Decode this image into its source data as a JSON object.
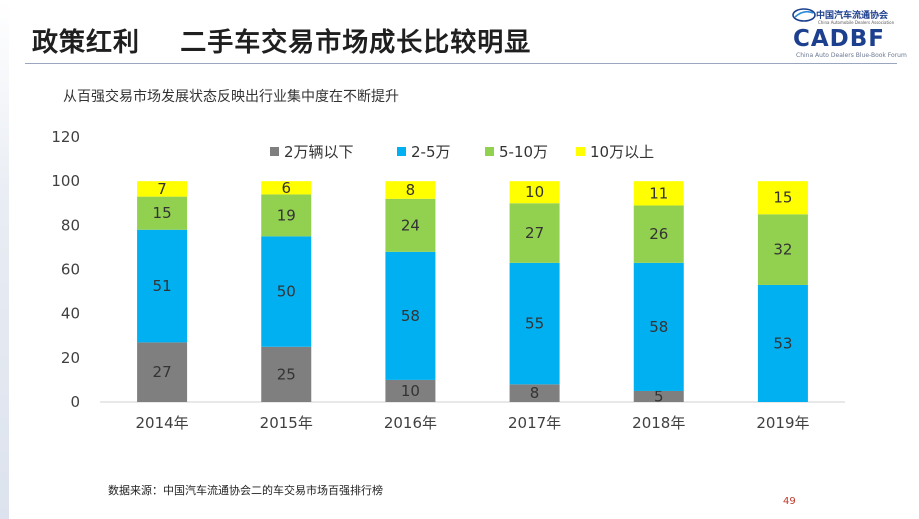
{
  "header": {
    "title": "政策红利    二手车交易市场成长比较明显",
    "subtitle": "从百强交易市场发展状态反映出行业集中度在不断提升"
  },
  "logo": {
    "org_cn": "中国汽车流通协会",
    "org_en": "China Automobile Dealers Association",
    "name": "CADBF",
    "forum": "China Auto Dealers Blue-Book Forum"
  },
  "footer": {
    "source": "数据来源：中国汽车流通协会二的车交易市场百强排行榜",
    "page_number": "49"
  },
  "chart_data": {
    "type": "bar",
    "stacked": true,
    "categories": [
      "2014年",
      "2015年",
      "2016年",
      "2017年",
      "2018年",
      "2019年"
    ],
    "series": [
      {
        "name": "2万辆以下",
        "color": "#7f7f7f",
        "values": [
          27,
          25,
          10,
          8,
          5,
          0
        ]
      },
      {
        "name": "2-5万",
        "color": "#00b0f0",
        "values": [
          51,
          50,
          58,
          55,
          58,
          53
        ]
      },
      {
        "name": "5-10万",
        "color": "#92d050",
        "values": [
          15,
          19,
          24,
          27,
          26,
          32
        ]
      },
      {
        "name": "10万以上",
        "color": "#ffff00",
        "values": [
          7,
          6,
          8,
          10,
          11,
          15
        ]
      }
    ],
    "yticks": [
      "0",
      "20",
      "40",
      "60",
      "80",
      "100",
      "120"
    ],
    "ylim": [
      0,
      120
    ],
    "legend_position": "top",
    "grid": false
  }
}
